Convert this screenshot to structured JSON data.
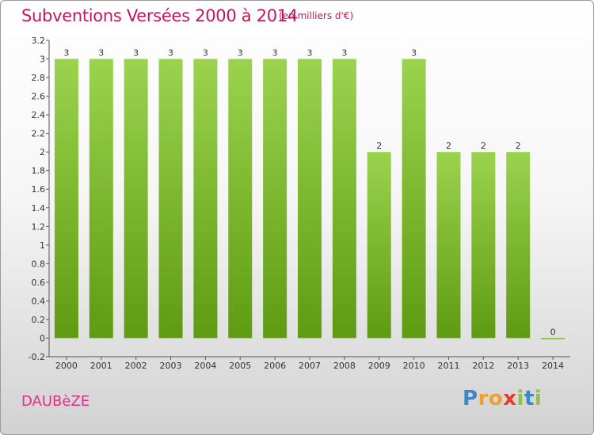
{
  "title": "Subventions Versées 2000 à 2014",
  "unit_note": "(en milliers d'€)",
  "commune": "DAUBèZE",
  "logo": {
    "letters": [
      "P",
      "r",
      "o",
      "x",
      "i",
      "t",
      "i"
    ],
    "colors": [
      "#3f86c8",
      "#f0a030",
      "#f0a030",
      "#e43b2c",
      "#8cc34a",
      "#3f86c8",
      "#8cc34a"
    ]
  },
  "colors": {
    "bar_top": "#9bd34e",
    "bar_bottom": "#5e9b12",
    "title": "#c2185b"
  },
  "chart_data": {
    "type": "bar",
    "categories": [
      "2000",
      "2001",
      "2002",
      "2003",
      "2004",
      "2005",
      "2006",
      "2007",
      "2008",
      "2009",
      "2010",
      "2011",
      "2012",
      "2013",
      "2014"
    ],
    "values": [
      3,
      3,
      3,
      3,
      3,
      3,
      3,
      3,
      3,
      2,
      3,
      2,
      2,
      2,
      0
    ],
    "data_labels": [
      "3",
      "3",
      "3",
      "3",
      "3",
      "3",
      "3",
      "3",
      "3",
      "2",
      "3",
      "2",
      "2",
      "2",
      "0"
    ],
    "ylim": [
      -0.2,
      3.2
    ],
    "yticks": [
      -0.2,
      0,
      0.2,
      0.4,
      0.6,
      0.8,
      1,
      1.2,
      1.4,
      1.6,
      1.8,
      2,
      2.2,
      2.4,
      2.6,
      2.8,
      3,
      3.2
    ],
    "ytick_labels": [
      "-0.2",
      "0",
      "0.2",
      "0.4",
      "0.6",
      "0.8",
      "1",
      "1.2",
      "1.4",
      "1.6",
      "1.8",
      "2",
      "2.2",
      "2.4",
      "2.6",
      "2.8",
      "3",
      "3.2"
    ],
    "grid": false,
    "xlabel": "",
    "ylabel": ""
  }
}
